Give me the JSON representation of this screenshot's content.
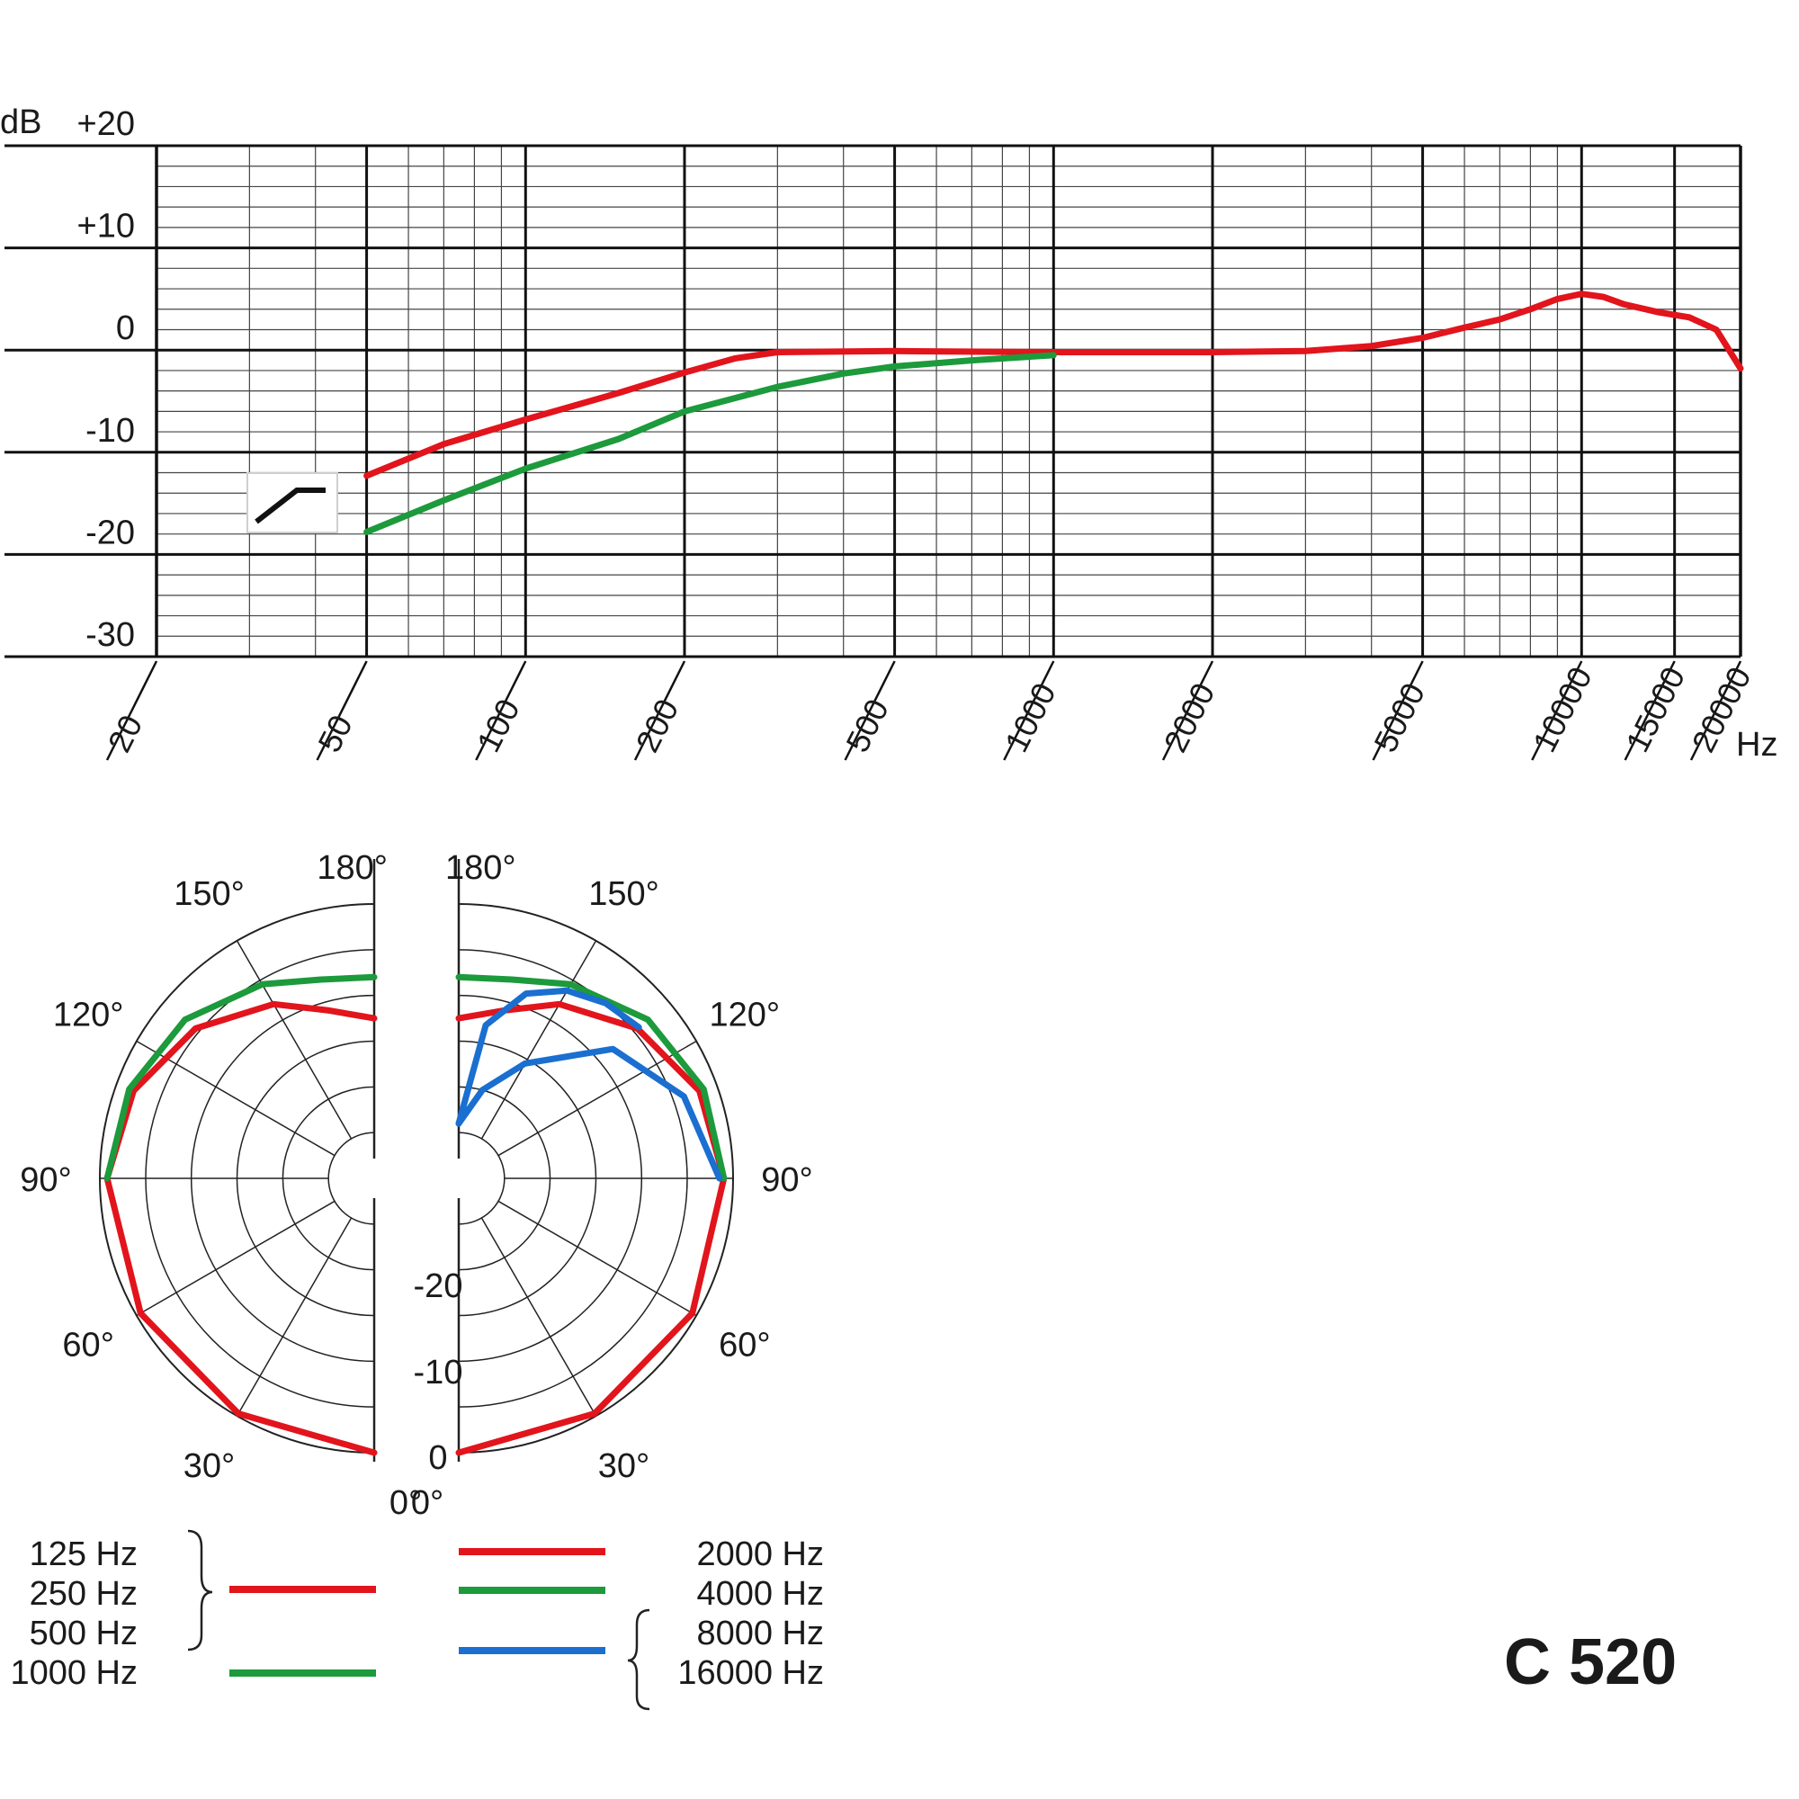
{
  "model_label": "C 520",
  "chart_data": [
    {
      "type": "line",
      "scale_x": "log",
      "xlim": [
        20,
        20000
      ],
      "ylim": [
        -30,
        20
      ],
      "grid": true,
      "xlabel": "Hz",
      "ylabel": "dB",
      "y_ticks": [
        {
          "value": 20,
          "label": "+20"
        },
        {
          "value": 10,
          "label": "+10"
        },
        {
          "value": 0,
          "label": "0"
        },
        {
          "value": -10,
          "label": "-10"
        },
        {
          "value": -20,
          "label": "-20"
        },
        {
          "value": -30,
          "label": "-30"
        }
      ],
      "x_ticks": [
        {
          "value": 20,
          "label": "20"
        },
        {
          "value": 50,
          "label": "50"
        },
        {
          "value": 100,
          "label": "100"
        },
        {
          "value": 200,
          "label": "200"
        },
        {
          "value": 500,
          "label": "500"
        },
        {
          "value": 1000,
          "label": "1000"
        },
        {
          "value": 2000,
          "label": "2000"
        },
        {
          "value": 5000,
          "label": "5000"
        },
        {
          "value": 10000,
          "label": "10000"
        },
        {
          "value": 15000,
          "label": "15000"
        },
        {
          "value": 20000,
          "label": "20000"
        }
      ],
      "bass_cut_icon": "bass-rolloff-symbol",
      "series": [
        {
          "color": "#e2141c",
          "points": [
            [
              50,
              -12.3
            ],
            [
              70,
              -9.2
            ],
            [
              100,
              -6.8
            ],
            [
              150,
              -4.2
            ],
            [
              200,
              -2.2
            ],
            [
              250,
              -0.8
            ],
            [
              300,
              -0.2
            ],
            [
              500,
              -0.1
            ],
            [
              1000,
              -0.2
            ],
            [
              2000,
              -0.2
            ],
            [
              3000,
              -0.1
            ],
            [
              4000,
              0.4
            ],
            [
              5000,
              1.2
            ],
            [
              6000,
              2.2
            ],
            [
              7000,
              3.0
            ],
            [
              8000,
              4.0
            ],
            [
              9000,
              5.0
            ],
            [
              10000,
              5.5
            ],
            [
              11000,
              5.2
            ],
            [
              12000,
              4.5
            ],
            [
              14000,
              3.7
            ],
            [
              16000,
              3.2
            ],
            [
              18000,
              2.0
            ],
            [
              20000,
              -1.8
            ]
          ]
        },
        {
          "color": "#1c9a3c",
          "points": [
            [
              50,
              -17.8
            ],
            [
              70,
              -14.7
            ],
            [
              100,
              -11.6
            ],
            [
              150,
              -8.7
            ],
            [
              200,
              -6.0
            ],
            [
              300,
              -3.6
            ],
            [
              400,
              -2.3
            ],
            [
              500,
              -1.6
            ],
            [
              700,
              -1.0
            ],
            [
              1000,
              -0.5
            ]
          ]
        }
      ]
    },
    {
      "type": "polar",
      "rlim": [
        -30,
        0
      ],
      "r_ticks": [
        {
          "value": -20,
          "label": "-20"
        },
        {
          "value": -10,
          "label": "-10"
        },
        {
          "value": 0,
          "label": "0"
        }
      ],
      "angle_labels_left": [
        "0°",
        "30°",
        "60°",
        "90°",
        "120°",
        "150°",
        "180°"
      ],
      "angle_labels_right": [
        "0°",
        "30°",
        "60°",
        "90°",
        "120°",
        "150°",
        "180°"
      ],
      "left_series": [
        {
          "color": "#e2141c",
          "points": [
            [
              0,
              0
            ],
            [
              30,
              -0.3
            ],
            [
              60,
              -0.5
            ],
            [
              90,
              -0.8
            ],
            [
              110,
              -2.0
            ],
            [
              130,
              -4.5
            ],
            [
              150,
              -8.0
            ],
            [
              165,
              -11.0
            ],
            [
              180,
              -12.5
            ]
          ]
        },
        {
          "color": "#1c9a3c",
          "points": [
            [
              90,
              -0.8
            ],
            [
              110,
              -1.5
            ],
            [
              130,
              -3.0
            ],
            [
              150,
              -5.5
            ],
            [
              165,
              -7.5
            ],
            [
              180,
              -8.0
            ]
          ]
        }
      ],
      "right_series": [
        {
          "color": "#e2141c",
          "points": [
            [
              0,
              0
            ],
            [
              30,
              -0.3
            ],
            [
              60,
              -0.5
            ],
            [
              90,
              -1.0
            ],
            [
              110,
              -2.0
            ],
            [
              130,
              -4.5
            ],
            [
              150,
              -8.0
            ],
            [
              165,
              -11.0
            ],
            [
              180,
              -12.5
            ]
          ]
        },
        {
          "color": "#1c9a3c",
          "points": [
            [
              90,
              -1.0
            ],
            [
              110,
              -1.5
            ],
            [
              130,
              -3.0
            ],
            [
              150,
              -5.5
            ],
            [
              165,
              -7.5
            ],
            [
              180,
              -8.0
            ]
          ]
        },
        {
          "color": "#1a6fd0",
          "points": [
            [
              90,
              -1.5
            ],
            [
              110,
              -3.8
            ],
            [
              130,
              -8.0
            ],
            [
              150,
              -15.5
            ],
            [
              165,
              -20.0
            ],
            [
              180,
              -24.0
            ]
          ]
        },
        {
          "color": "#1a6fd0",
          "points": [
            [
              180,
              -24.0
            ],
            [
              170,
              -13.0
            ],
            [
              160,
              -8.5
            ],
            [
              150,
              -6.3
            ],
            [
              140,
              -5.0
            ],
            [
              130,
              -4.3
            ]
          ]
        }
      ],
      "legend": {
        "left_group": [
          "125 Hz",
          "250 Hz",
          "500 Hz"
        ],
        "left_single": "1000 Hz",
        "right_red": "2000 Hz",
        "right_green": "4000 Hz",
        "right_group": [
          "8000 Hz",
          "16000 Hz"
        ]
      }
    }
  ]
}
